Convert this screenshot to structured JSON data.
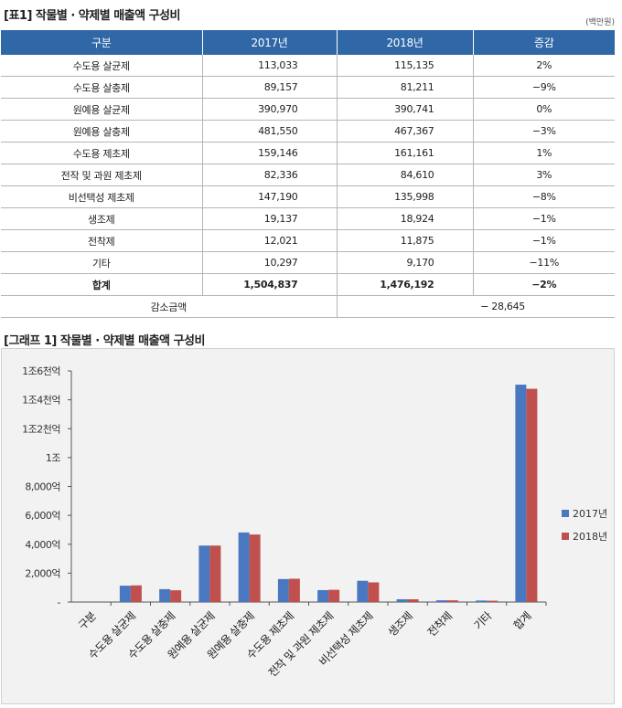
{
  "table": {
    "caption": "[표1] 작물별 · 약제별 매출액 구성비",
    "unit": "(백만원)",
    "headers": [
      "구분",
      "2017년",
      "2018년",
      "증감"
    ],
    "rows": [
      {
        "label": "수도용 살균제",
        "y2017": "113,033",
        "y2018": "115,135",
        "change": "2%"
      },
      {
        "label": "수도용 살충제",
        "y2017": "89,157",
        "y2018": "81,211",
        "change": "−9%"
      },
      {
        "label": "원예용 살균제",
        "y2017": "390,970",
        "y2018": "390,741",
        "change": "0%"
      },
      {
        "label": "원예용 살충제",
        "y2017": "481,550",
        "y2018": "467,367",
        "change": "−3%"
      },
      {
        "label": "수도용 제초제",
        "y2017": "159,146",
        "y2018": "161,161",
        "change": "1%"
      },
      {
        "label": "전작 및 과원 제초제",
        "y2017": "82,336",
        "y2018": "84,610",
        "change": "3%"
      },
      {
        "label": "비선택성 제초제",
        "y2017": "147,190",
        "y2018": "135,998",
        "change": "−8%"
      },
      {
        "label": "생조제",
        "y2017": "19,137",
        "y2018": "18,924",
        "change": "−1%"
      },
      {
        "label": "전착제",
        "y2017": "12,021",
        "y2018": "11,875",
        "change": "−1%"
      },
      {
        "label": "기타",
        "y2017": "10,297",
        "y2018": "9,170",
        "change": "−11%"
      }
    ],
    "total": {
      "label": "합계",
      "y2017": "1,504,837",
      "y2018": "1,476,192",
      "change": "−2%"
    },
    "decrease": {
      "label": "감소금액",
      "value": "− 28,645"
    }
  },
  "chart_caption": "[그래프 1] 작물별 · 약제별 매출액 구성비",
  "chart_data": {
    "type": "bar",
    "categories": [
      "구분",
      "수도용 살균제",
      "수도용 살충제",
      "원예용 살균제",
      "원예용 살충제",
      "수도용 제초제",
      "전작 및 과원 제초제",
      "비선택성 제초제",
      "생조제",
      "전착제",
      "기타",
      "합계"
    ],
    "series": [
      {
        "name": "2017년",
        "color": "#4a78c0",
        "values": [
          0,
          113033,
          89157,
          390970,
          481550,
          159146,
          82336,
          147190,
          19137,
          12021,
          10297,
          1504837
        ]
      },
      {
        "name": "2018년",
        "color": "#c0504d",
        "values": [
          0,
          115135,
          81211,
          390741,
          467367,
          161161,
          84610,
          135998,
          18924,
          11875,
          9170,
          1476192
        ]
      }
    ],
    "y_ticks": [
      {
        "value": 0,
        "label": "-"
      },
      {
        "value": 200000,
        "label": "2,000억"
      },
      {
        "value": 400000,
        "label": "4,000억"
      },
      {
        "value": 600000,
        "label": "6,000억"
      },
      {
        "value": 800000,
        "label": "8,000억"
      },
      {
        "value": 1000000,
        "label": "1조"
      },
      {
        "value": 1200000,
        "label": "1조2천억"
      },
      {
        "value": 1400000,
        "label": "1조4천억"
      },
      {
        "value": 1600000,
        "label": "1조6천억"
      }
    ],
    "ylim": [
      0,
      1600000
    ],
    "grid": false,
    "legend": "right",
    "axis_color": "#555555"
  }
}
